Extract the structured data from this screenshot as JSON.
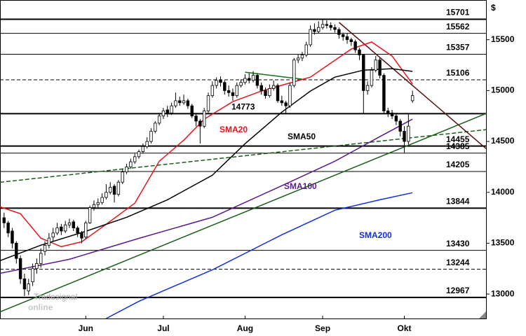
{
  "chart_data": {
    "type": "candlestick",
    "y_unit": "$",
    "watermark": [
      "Tradesignal",
      "online"
    ],
    "xlim": [
      -1,
      118
    ],
    "xticks": [
      {
        "value": 20,
        "label": "Jun"
      },
      {
        "value": 39,
        "label": "Jul"
      },
      {
        "value": 59,
        "label": "Aug"
      },
      {
        "value": 78,
        "label": "Sep"
      },
      {
        "value": 98,
        "label": "Okt"
      }
    ],
    "ylim": [
      12760,
      15890
    ],
    "yticks": [
      13000,
      13500,
      14000,
      14500,
      15000,
      15500
    ],
    "up_color": "#ffffff",
    "down_color": "#000000",
    "ohlc": [
      [
        13750,
        13800,
        13650,
        13700
      ],
      [
        13700,
        13720,
        13560,
        13600
      ],
      [
        13620,
        13650,
        13450,
        13500
      ],
      [
        13500,
        13520,
        13300,
        13350
      ],
      [
        13350,
        13380,
        13100,
        13150
      ],
      [
        13150,
        13200,
        12980,
        13050
      ],
      [
        13030,
        13150,
        12990,
        13100
      ],
      [
        13120,
        13300,
        13080,
        13250
      ],
      [
        13250,
        13350,
        13200,
        13300
      ],
      [
        13300,
        13450,
        13260,
        13400
      ],
      [
        13420,
        13520,
        13380,
        13480
      ],
      [
        13480,
        13600,
        13450,
        13550
      ],
      [
        13560,
        13650,
        13520,
        13600
      ],
      [
        13600,
        13700,
        13580,
        13650
      ],
      [
        13660,
        13690,
        13580,
        13620
      ],
      [
        13620,
        13720,
        13600,
        13680
      ],
      [
        13680,
        13740,
        13650,
        13700
      ],
      [
        13710,
        13730,
        13620,
        13650
      ],
      [
        13650,
        13670,
        13560,
        13600
      ],
      [
        13600,
        13620,
        13500,
        13550
      ],
      [
        13560,
        13720,
        13540,
        13700
      ],
      [
        13700,
        13870,
        13690,
        13850
      ],
      [
        13850,
        13920,
        13820,
        13880
      ],
      [
        13880,
        13940,
        13850,
        13900
      ],
      [
        13900,
        13990,
        13880,
        13950
      ],
      [
        13950,
        14080,
        13930,
        14000
      ],
      [
        14000,
        14100,
        13980,
        14050
      ],
      [
        14060,
        14080,
        13900,
        13980
      ],
      [
        13980,
        14120,
        13960,
        14100
      ],
      [
        14100,
        14230,
        14080,
        14200
      ],
      [
        14200,
        14280,
        14180,
        14250
      ],
      [
        14250,
        14330,
        14230,
        14300
      ],
      [
        14300,
        14380,
        14280,
        14350
      ],
      [
        14350,
        14420,
        14330,
        14400
      ],
      [
        14400,
        14480,
        14380,
        14450
      ],
      [
        14450,
        14540,
        14430,
        14500
      ],
      [
        14500,
        14630,
        14480,
        14600
      ],
      [
        14600,
        14700,
        14580,
        14680
      ],
      [
        14680,
        14780,
        14660,
        14750
      ],
      [
        14750,
        14830,
        14720,
        14800
      ],
      [
        14810,
        14850,
        14740,
        14780
      ],
      [
        14780,
        14880,
        14760,
        14850
      ],
      [
        14850,
        14980,
        14830,
        14900
      ],
      [
        14900,
        14940,
        14850,
        14880
      ],
      [
        14880,
        14960,
        14860,
        14900
      ],
      [
        14900,
        14920,
        14820,
        14850
      ],
      [
        14850,
        14870,
        14730,
        14750
      ],
      [
        14750,
        14780,
        14650,
        14700
      ],
      [
        14700,
        14720,
        14480,
        14650
      ],
      [
        14650,
        14830,
        14630,
        14800
      ],
      [
        14800,
        14980,
        14780,
        14950
      ],
      [
        14950,
        15090,
        14930,
        15050
      ],
      [
        15050,
        15130,
        15020,
        15100
      ],
      [
        15100,
        15140,
        15040,
        15080
      ],
      [
        15080,
        15100,
        14960,
        15000
      ],
      [
        15000,
        15050,
        14940,
        14980
      ],
      [
        14980,
        15020,
        14900,
        14950
      ],
      [
        14950,
        15080,
        14930,
        15050
      ],
      [
        15050,
        15110,
        15030,
        15080
      ],
      [
        15080,
        15160,
        15060,
        15120
      ],
      [
        15120,
        15170,
        15070,
        15100
      ],
      [
        15100,
        15190,
        15080,
        15150
      ],
      [
        15150,
        15170,
        15020,
        15050
      ],
      [
        15050,
        15080,
        14960,
        15000
      ],
      [
        15000,
        15030,
        14920,
        14950
      ],
      [
        14950,
        15060,
        14930,
        15020
      ],
      [
        15020,
        15100,
        15000,
        15050
      ],
      [
        15050,
        15070,
        14880,
        14900
      ],
      [
        14900,
        14950,
        14850,
        14880
      ],
      [
        14880,
        14900,
        14770,
        14850
      ],
      [
        14850,
        15080,
        14830,
        15050
      ],
      [
        15050,
        15320,
        15030,
        15300
      ],
      [
        15300,
        15360,
        15270,
        15320
      ],
      [
        15320,
        15380,
        15290,
        15350
      ],
      [
        15350,
        15480,
        15330,
        15450
      ],
      [
        15450,
        15640,
        15430,
        15600
      ],
      [
        15600,
        15660,
        15550,
        15580
      ],
      [
        15580,
        15680,
        15560,
        15620
      ],
      [
        15620,
        15700,
        15600,
        15650
      ],
      [
        15650,
        15690,
        15610,
        15640
      ],
      [
        15640,
        15670,
        15590,
        15620
      ],
      [
        15620,
        15650,
        15570,
        15600
      ],
      [
        15600,
        15620,
        15510,
        15550
      ],
      [
        15550,
        15570,
        15490,
        15530
      ],
      [
        15530,
        15560,
        15460,
        15500
      ],
      [
        15500,
        15520,
        15440,
        15480
      ],
      [
        15480,
        15500,
        15370,
        15400
      ],
      [
        15400,
        15420,
        15300,
        15350
      ],
      [
        15350,
        15360,
        14780,
        15000
      ],
      [
        15000,
        15090,
        14960,
        15050
      ],
      [
        15050,
        15230,
        15030,
        15200
      ],
      [
        15200,
        15340,
        15180,
        15300
      ],
      [
        15300,
        15320,
        15120,
        15150
      ],
      [
        15150,
        15170,
        14770,
        14800
      ],
      [
        14800,
        14830,
        14740,
        14780
      ],
      [
        14780,
        14810,
        14720,
        14750
      ],
      [
        14750,
        14780,
        14660,
        14700
      ],
      [
        14700,
        14720,
        14550,
        14600
      ],
      [
        14600,
        14650,
        14380,
        14500
      ],
      [
        14500,
        14780,
        14470,
        14650
      ],
      [
        14900,
        15000,
        14880,
        14950
      ]
    ],
    "series": [
      {
        "name": "SMA20",
        "color": "#e8141c",
        "x": [
          -1,
          4,
          9,
          14,
          19,
          25,
          32,
          38,
          44,
          49,
          56,
          63,
          69,
          75,
          80,
          85,
          90,
          95,
          100
        ],
        "values": [
          13858,
          13790,
          13550,
          13466,
          13514,
          13686,
          13893,
          14306,
          14513,
          14719,
          14891,
          14995,
          15064,
          15132,
          15270,
          15408,
          15477,
          15339,
          15064
        ]
      },
      {
        "name": "SMA50",
        "color": "#000000",
        "x": [
          -1,
          9,
          20,
          30,
          40,
          51,
          59,
          68,
          75,
          81,
          88,
          95,
          100
        ],
        "values": [
          13328,
          13480,
          13617,
          13755,
          13927,
          14168,
          14478,
          14788,
          14995,
          15132,
          15201,
          15215,
          15188
        ]
      },
      {
        "name": "SMA100",
        "color": "#5a1a8c",
        "x": [
          -1,
          16,
          33,
          51,
          68,
          81,
          92,
          100
        ],
        "values": [
          13204,
          13342,
          13548,
          13755,
          14065,
          14306,
          14547,
          14719
        ]
      },
      {
        "name": "SMA200",
        "color": "#1030e0",
        "x": [
          25,
          33,
          51,
          68,
          81,
          92,
          100
        ],
        "values": [
          12760,
          12929,
          13238,
          13583,
          13824,
          13927,
          13996
        ]
      }
    ],
    "trendlines": [
      {
        "color": "#1a5e1a",
        "dashed": false,
        "x": [
          -1,
          118
        ],
        "values": [
          12825,
          14774
        ]
      },
      {
        "color": "#1a5e1a",
        "dashed": true,
        "x": [
          -1,
          118
        ],
        "values": [
          14099,
          14616
        ]
      },
      {
        "color": "#5a1010",
        "dashed": false,
        "x": [
          82,
          118
        ],
        "values": [
          15670,
          14430
        ]
      },
      {
        "color": "#1a6e1a",
        "dashed": false,
        "x": [
          59,
          73
        ],
        "values": [
          15181,
          15112
        ]
      }
    ],
    "levels": [
      {
        "value": 15701,
        "dashed": false,
        "thick": true
      },
      {
        "value": 15562,
        "dashed": false,
        "thick": false
      },
      {
        "value": 15357,
        "dashed": false,
        "thick": false
      },
      {
        "value": 15106,
        "dashed": true,
        "thick": false
      },
      {
        "value": 14773,
        "dashed": false,
        "thick": true
      },
      {
        "value": 14455,
        "dashed": false,
        "thick": true
      },
      {
        "value": 14385,
        "dashed": false,
        "thick": false
      },
      {
        "value": 14205,
        "dashed": false,
        "thick": false
      },
      {
        "value": 13844,
        "dashed": false,
        "thick": true
      },
      {
        "value": 13430,
        "dashed": false,
        "thick": false
      },
      {
        "value": 13244,
        "dashed": true,
        "thick": false
      },
      {
        "value": 12967,
        "dashed": false,
        "thick": true
      }
    ]
  }
}
